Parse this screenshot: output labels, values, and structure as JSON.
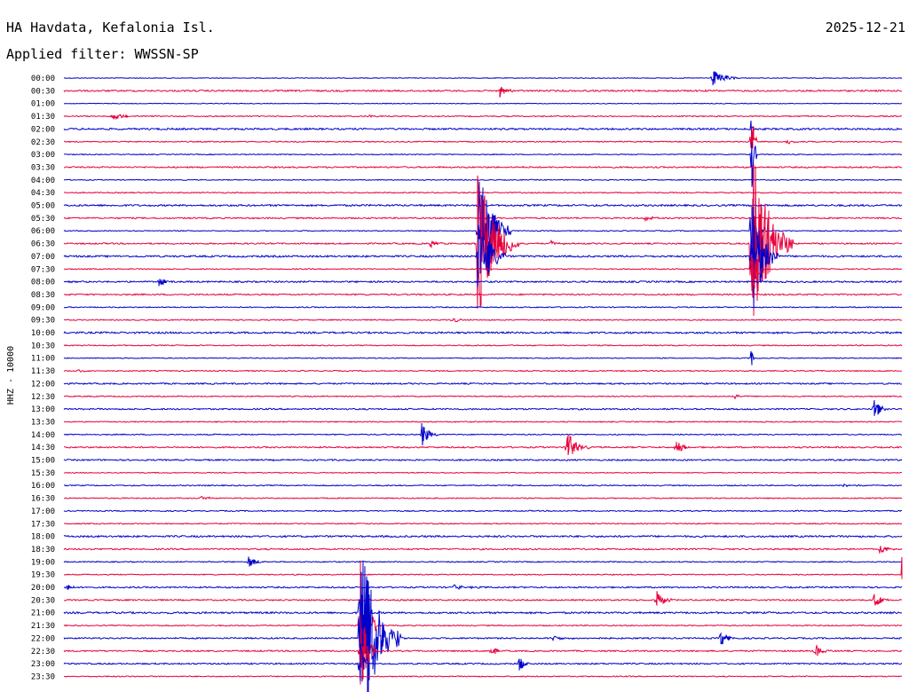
{
  "header": {
    "station": "HA Havdata, Kefalonia Isl.",
    "date": "2025-12-21",
    "filter": "Applied filter: WWSSN-SP"
  },
  "chart_data": {
    "type": "line",
    "title": "HA Havdata, Kefalonia Isl.",
    "ylabel": "HHZ - 10000",
    "colors": [
      "#0000cc",
      "#e8003c"
    ],
    "time_labels": [
      "00:00",
      "00:30",
      "01:00",
      "01:30",
      "02:00",
      "02:30",
      "03:00",
      "03:30",
      "04:00",
      "04:30",
      "05:00",
      "05:30",
      "06:00",
      "06:30",
      "07:00",
      "07:30",
      "08:00",
      "08:30",
      "09:00",
      "09:30",
      "10:00",
      "10:30",
      "11:00",
      "11:30",
      "12:00",
      "12:30",
      "13:00",
      "13:30",
      "14:00",
      "14:30",
      "15:00",
      "15:30",
      "16:00",
      "16:30",
      "17:00",
      "17:30",
      "18:00",
      "18:30",
      "19:00",
      "19:30",
      "20:00",
      "20:30",
      "21:00",
      "21:30",
      "22:00",
      "22:30",
      "23:00",
      "23:30"
    ],
    "noise": [
      0.4,
      0.9,
      0.4,
      0.6,
      1.0,
      0.6,
      0.5,
      0.8,
      0.5,
      0.6,
      1.0,
      0.8,
      0.5,
      0.8,
      1.0,
      0.6,
      0.9,
      0.8,
      0.6,
      0.6,
      1.0,
      0.6,
      0.5,
      0.6,
      0.8,
      0.6,
      0.8,
      0.6,
      0.6,
      0.8,
      0.8,
      0.5,
      0.6,
      0.6,
      0.6,
      0.6,
      1.0,
      0.8,
      0.6,
      0.6,
      0.8,
      0.8,
      1.0,
      0.6,
      0.8,
      0.8,
      0.8,
      0.6
    ],
    "events": [
      {
        "row": 0,
        "minute": 23.2,
        "amp": 10,
        "dur": 1.0
      },
      {
        "row": 1,
        "minute": 15.6,
        "amp": 8,
        "dur": 0.5
      },
      {
        "row": 3,
        "minute": 1.7,
        "amp": 5,
        "dur": 1.0
      },
      {
        "row": 3,
        "minute": 10.9,
        "amp": 2,
        "dur": 0.8
      },
      {
        "row": 5,
        "minute": 25.9,
        "amp": 3,
        "dur": 0.5
      },
      {
        "row": 4,
        "minute": 24.6,
        "amp": 35,
        "dur": 0.1
      },
      {
        "row": 5,
        "minute": 24.6,
        "amp": 55,
        "dur": 0.2
      },
      {
        "row": 6,
        "minute": 24.6,
        "amp": 70,
        "dur": 0.2
      },
      {
        "row": 12,
        "minute": 14.8,
        "amp": 80,
        "dur": 1.2
      },
      {
        "row": 13,
        "minute": 14.8,
        "amp": 90,
        "dur": 1.5
      },
      {
        "row": 14,
        "minute": 14.8,
        "amp": 60,
        "dur": 1.0
      },
      {
        "row": 11,
        "minute": 20.8,
        "amp": 4,
        "dur": 0.5
      },
      {
        "row": 13,
        "minute": 13.1,
        "amp": 5,
        "dur": 0.5
      },
      {
        "row": 13,
        "minute": 17.4,
        "amp": 3,
        "dur": 0.8
      },
      {
        "row": 12,
        "minute": 24.6,
        "amp": 60,
        "dur": 0.5
      },
      {
        "row": 13,
        "minute": 24.6,
        "amp": 120,
        "dur": 1.5
      },
      {
        "row": 14,
        "minute": 24.6,
        "amp": 80,
        "dur": 1.0
      },
      {
        "row": 15,
        "minute": 24.6,
        "amp": 50,
        "dur": 0.4
      },
      {
        "row": 16,
        "minute": 3.4,
        "amp": 6,
        "dur": 0.5
      },
      {
        "row": 19,
        "minute": 13.9,
        "amp": 3,
        "dur": 0.8
      },
      {
        "row": 22,
        "minute": 24.6,
        "amp": 40,
        "dur": 0.1
      },
      {
        "row": 23,
        "minute": 0.5,
        "amp": 3,
        "dur": 0.5
      },
      {
        "row": 25,
        "minute": 24.0,
        "amp": 4,
        "dur": 0.5
      },
      {
        "row": 26,
        "minute": 29.0,
        "amp": 12,
        "dur": 0.5
      },
      {
        "row": 28,
        "minute": 12.8,
        "amp": 15,
        "dur": 0.6
      },
      {
        "row": 29,
        "minute": 18.0,
        "amp": 20,
        "dur": 0.8
      },
      {
        "row": 29,
        "minute": 21.9,
        "amp": 10,
        "dur": 0.6
      },
      {
        "row": 32,
        "minute": 27.9,
        "amp": 2,
        "dur": 1.0
      },
      {
        "row": 33,
        "minute": 4.9,
        "amp": 4,
        "dur": 0.5
      },
      {
        "row": 37,
        "minute": 29.2,
        "amp": 6,
        "dur": 0.6
      },
      {
        "row": 38,
        "minute": 6.6,
        "amp": 8,
        "dur": 0.6
      },
      {
        "row": 39,
        "minute": 30.0,
        "amp": 20,
        "dur": 0.3
      },
      {
        "row": 40,
        "minute": 0.1,
        "amp": 6,
        "dur": 0.3
      },
      {
        "row": 40,
        "minute": 13.9,
        "amp": 3,
        "dur": 1.2
      },
      {
        "row": 41,
        "minute": 21.2,
        "amp": 12,
        "dur": 0.6
      },
      {
        "row": 41,
        "minute": 29.0,
        "amp": 10,
        "dur": 0.6
      },
      {
        "row": 42,
        "minute": 10.6,
        "amp": 60,
        "dur": 0.2
      },
      {
        "row": 43,
        "minute": 10.6,
        "amp": 80,
        "dur": 0.6
      },
      {
        "row": 44,
        "minute": 10.6,
        "amp": 120,
        "dur": 1.5
      },
      {
        "row": 45,
        "minute": 10.6,
        "amp": 60,
        "dur": 0.6
      },
      {
        "row": 46,
        "minute": 10.6,
        "amp": 30,
        "dur": 0.3
      },
      {
        "row": 44,
        "minute": 17.5,
        "amp": 4,
        "dur": 0.8
      },
      {
        "row": 44,
        "minute": 23.5,
        "amp": 10,
        "dur": 0.6
      },
      {
        "row": 45,
        "minute": 15.3,
        "amp": 6,
        "dur": 0.5
      },
      {
        "row": 45,
        "minute": 26.9,
        "amp": 8,
        "dur": 0.6
      },
      {
        "row": 46,
        "minute": 16.3,
        "amp": 8,
        "dur": 0.5
      }
    ]
  }
}
